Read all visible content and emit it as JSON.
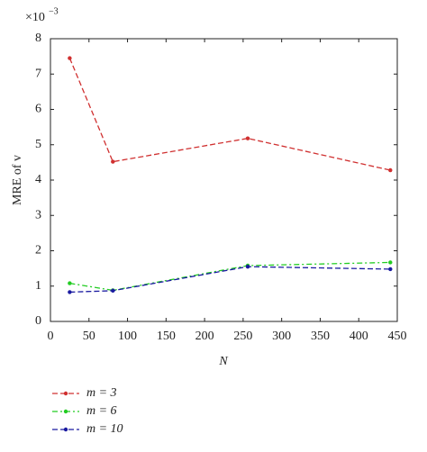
{
  "chart_data": {
    "type": "line",
    "x_label": "N",
    "y_label": "MRE of v",
    "multiplier": "×10",
    "multiplier_exponent": "−3",
    "x": [
      25,
      81,
      256,
      441
    ],
    "series": [
      {
        "name": "m = 3",
        "color": "#d03030",
        "values": [
          7.45,
          4.52,
          5.18,
          4.28
        ]
      },
      {
        "name": "m = 6",
        "color": "#22cc22",
        "values": [
          1.08,
          0.88,
          1.58,
          1.67
        ]
      },
      {
        "name": "m = 10",
        "color": "#1a1aa0",
        "values": [
          0.83,
          0.87,
          1.55,
          1.48
        ]
      }
    ],
    "xlim": [
      0,
      450
    ],
    "xticks": [
      0,
      50,
      100,
      150,
      200,
      250,
      300,
      350,
      400,
      450
    ],
    "ylim": [
      0,
      8
    ],
    "yticks": [
      0,
      1,
      2,
      3,
      4,
      5,
      6,
      7,
      8
    ]
  }
}
